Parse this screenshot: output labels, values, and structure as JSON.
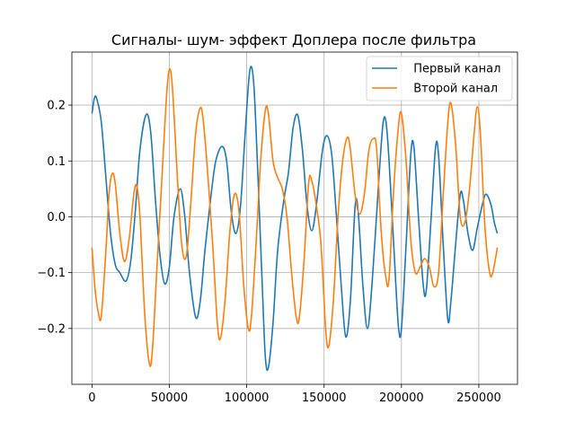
{
  "chart_data": {
    "type": "line",
    "title": "Сигналы- шум- эффект Доплера после фильтра",
    "xlabel": "",
    "ylabel": "",
    "xlim": [
      -13000,
      275000
    ],
    "ylim": [
      -0.3,
      0.295
    ],
    "grid": true,
    "legend_position": "top-right",
    "x_ticks": [
      0,
      50000,
      100000,
      150000,
      200000,
      250000
    ],
    "x_tick_labels": [
      "0",
      "50000",
      "100000",
      "150000",
      "200000",
      "250000"
    ],
    "y_ticks": [
      -0.2,
      -0.1,
      0.0,
      0.1,
      0.2
    ],
    "y_tick_labels": [
      "−0.2",
      "−0.1",
      "0.0",
      "0.1",
      "0.2"
    ],
    "series": [
      {
        "name": "  Первый канал",
        "color": "#1f77b4",
        "points": [
          [
            0,
            0.185
          ],
          [
            1500,
            0.212
          ],
          [
            3000,
            0.212
          ],
          [
            6000,
            0.17
          ],
          [
            9000,
            0.07
          ],
          [
            12000,
            -0.03
          ],
          [
            15000,
            -0.085
          ],
          [
            18000,
            -0.1
          ],
          [
            22000,
            -0.115
          ],
          [
            25000,
            -0.08
          ],
          [
            28000,
            0.01
          ],
          [
            31000,
            0.12
          ],
          [
            35000,
            0.183
          ],
          [
            38000,
            0.15
          ],
          [
            41000,
            0.03
          ],
          [
            44000,
            -0.07
          ],
          [
            47000,
            -0.12
          ],
          [
            50000,
            -0.09
          ],
          [
            53000,
            0.0
          ],
          [
            57000,
            0.05
          ],
          [
            60000,
            0.0
          ],
          [
            63000,
            -0.1
          ],
          [
            67000,
            -0.18
          ],
          [
            70000,
            -0.15
          ],
          [
            73000,
            -0.06
          ],
          [
            77000,
            0.04
          ],
          [
            80000,
            0.1
          ],
          [
            84000,
            0.126
          ],
          [
            87000,
            0.1
          ],
          [
            90000,
            0.01
          ],
          [
            93000,
            -0.03
          ],
          [
            96000,
            0.02
          ],
          [
            99000,
            0.15
          ],
          [
            102000,
            0.262
          ],
          [
            104500,
            0.24
          ],
          [
            107000,
            0.09
          ],
          [
            110000,
            -0.12
          ],
          [
            112000,
            -0.25
          ],
          [
            114000,
            -0.27
          ],
          [
            117000,
            -0.19
          ],
          [
            120000,
            -0.06
          ],
          [
            124000,
            0.03
          ],
          [
            127000,
            0.08
          ],
          [
            130000,
            0.16
          ],
          [
            133000,
            0.182
          ],
          [
            136000,
            0.12
          ],
          [
            139000,
            0.02
          ],
          [
            142000,
            -0.025
          ],
          [
            145000,
            0.02
          ],
          [
            149000,
            0.12
          ],
          [
            152000,
            0.145
          ],
          [
            155000,
            0.11
          ],
          [
            158000,
            0.0
          ],
          [
            161000,
            -0.12
          ],
          [
            164000,
            -0.215
          ],
          [
            167000,
            -0.15
          ],
          [
            170000,
            0.017
          ],
          [
            172000,
            0.01
          ],
          [
            175000,
            -0.12
          ],
          [
            178000,
            -0.2
          ],
          [
            181000,
            -0.12
          ],
          [
            185000,
            0.05
          ],
          [
            188000,
            0.165
          ],
          [
            190000,
            0.17
          ],
          [
            192000,
            0.1
          ],
          [
            195000,
            -0.05
          ],
          [
            198000,
            -0.195
          ],
          [
            200000,
            -0.2
          ],
          [
            203000,
            -0.05
          ],
          [
            206000,
            0.11
          ],
          [
            208000,
            0.126
          ],
          [
            211000,
            0.0
          ],
          [
            214000,
            -0.12
          ],
          [
            216000,
            -0.133
          ],
          [
            219000,
            -0.01
          ],
          [
            222000,
            0.123
          ],
          [
            224000,
            0.11
          ],
          [
            227000,
            -0.05
          ],
          [
            230000,
            -0.185
          ],
          [
            232000,
            -0.15
          ],
          [
            235000,
            -0.05
          ],
          [
            238000,
            0.04
          ],
          [
            240000,
            0.03
          ],
          [
            243000,
            -0.03
          ],
          [
            246000,
            -0.06
          ],
          [
            249000,
            -0.02
          ],
          [
            253000,
            0.03
          ],
          [
            255000,
            0.04
          ],
          [
            258000,
            0.02
          ],
          [
            260000,
            -0.01
          ],
          [
            262000,
            -0.03
          ]
        ]
      },
      {
        "name": "  Второй канал",
        "color": "#ff7f0e",
        "points": [
          [
            0,
            -0.055
          ],
          [
            2000,
            -0.13
          ],
          [
            4000,
            -0.17
          ],
          [
            6000,
            -0.178
          ],
          [
            9000,
            -0.06
          ],
          [
            11000,
            0.04
          ],
          [
            13000,
            0.077
          ],
          [
            15000,
            0.06
          ],
          [
            18000,
            -0.03
          ],
          [
            21000,
            -0.08
          ],
          [
            24000,
            -0.04
          ],
          [
            27000,
            0.04
          ],
          [
            29000,
            0.055
          ],
          [
            31000,
            0.0
          ],
          [
            34000,
            -0.17
          ],
          [
            37000,
            -0.262
          ],
          [
            39000,
            -0.24
          ],
          [
            42000,
            -0.09
          ],
          [
            45000,
            0.06
          ],
          [
            48000,
            0.21
          ],
          [
            50000,
            0.264
          ],
          [
            52000,
            0.23
          ],
          [
            55000,
            0.08
          ],
          [
            58000,
            -0.05
          ],
          [
            61000,
            -0.07
          ],
          [
            64000,
            0.03
          ],
          [
            67000,
            0.15
          ],
          [
            70000,
            0.195
          ],
          [
            72000,
            0.17
          ],
          [
            75000,
            0.07
          ],
          [
            78000,
            -0.05
          ],
          [
            81000,
            -0.19
          ],
          [
            83000,
            -0.218
          ],
          [
            86000,
            -0.15
          ],
          [
            89000,
            -0.03
          ],
          [
            92000,
            0.04
          ],
          [
            95000,
            0.01
          ],
          [
            98000,
            -0.12
          ],
          [
            101000,
            -0.2
          ],
          [
            103000,
            -0.18
          ],
          [
            106000,
            -0.05
          ],
          [
            109000,
            0.1
          ],
          [
            112000,
            0.19
          ],
          [
            114000,
            0.185
          ],
          [
            117000,
            0.1
          ],
          [
            120000,
            0.07
          ],
          [
            123000,
            0.05
          ],
          [
            126000,
            0.0
          ],
          [
            129000,
            -0.1
          ],
          [
            132000,
            -0.18
          ],
          [
            134000,
            -0.18
          ],
          [
            137000,
            -0.08
          ],
          [
            140000,
            0.06
          ],
          [
            142000,
            0.065
          ],
          [
            145000,
            0.02
          ],
          [
            148000,
            -0.05
          ],
          [
            151000,
            -0.2
          ],
          [
            153000,
            -0.232
          ],
          [
            156000,
            -0.15
          ],
          [
            159000,
            0.0
          ],
          [
            162000,
            0.1
          ],
          [
            165000,
            0.142
          ],
          [
            167000,
            0.12
          ],
          [
            170000,
            0.04
          ],
          [
            173000,
            0.005
          ],
          [
            176000,
            0.04
          ],
          [
            179000,
            0.12
          ],
          [
            182000,
            0.14
          ],
          [
            184000,
            0.12
          ],
          [
            187000,
            -0.03
          ],
          [
            190000,
            -0.11
          ],
          [
            192000,
            -0.11
          ],
          [
            195000,
            0.05
          ],
          [
            198000,
            0.16
          ],
          [
            200000,
            0.185
          ],
          [
            203000,
            0.1
          ],
          [
            206000,
            -0.04
          ],
          [
            209000,
            -0.1
          ],
          [
            212000,
            -0.09
          ],
          [
            215000,
            -0.075
          ],
          [
            218000,
            -0.09
          ],
          [
            221000,
            -0.125
          ],
          [
            224000,
            -0.1
          ],
          [
            227000,
            0.04
          ],
          [
            230000,
            0.17
          ],
          [
            232000,
            0.203
          ],
          [
            235000,
            0.13
          ],
          [
            238000,
            0.0
          ],
          [
            241000,
            -0.01
          ],
          [
            244000,
            0.05
          ],
          [
            247000,
            0.15
          ],
          [
            249000,
            0.197
          ],
          [
            251000,
            0.15
          ],
          [
            254000,
            -0.02
          ],
          [
            257000,
            -0.1
          ],
          [
            259000,
            -0.1
          ],
          [
            262000,
            -0.055
          ]
        ]
      }
    ]
  }
}
